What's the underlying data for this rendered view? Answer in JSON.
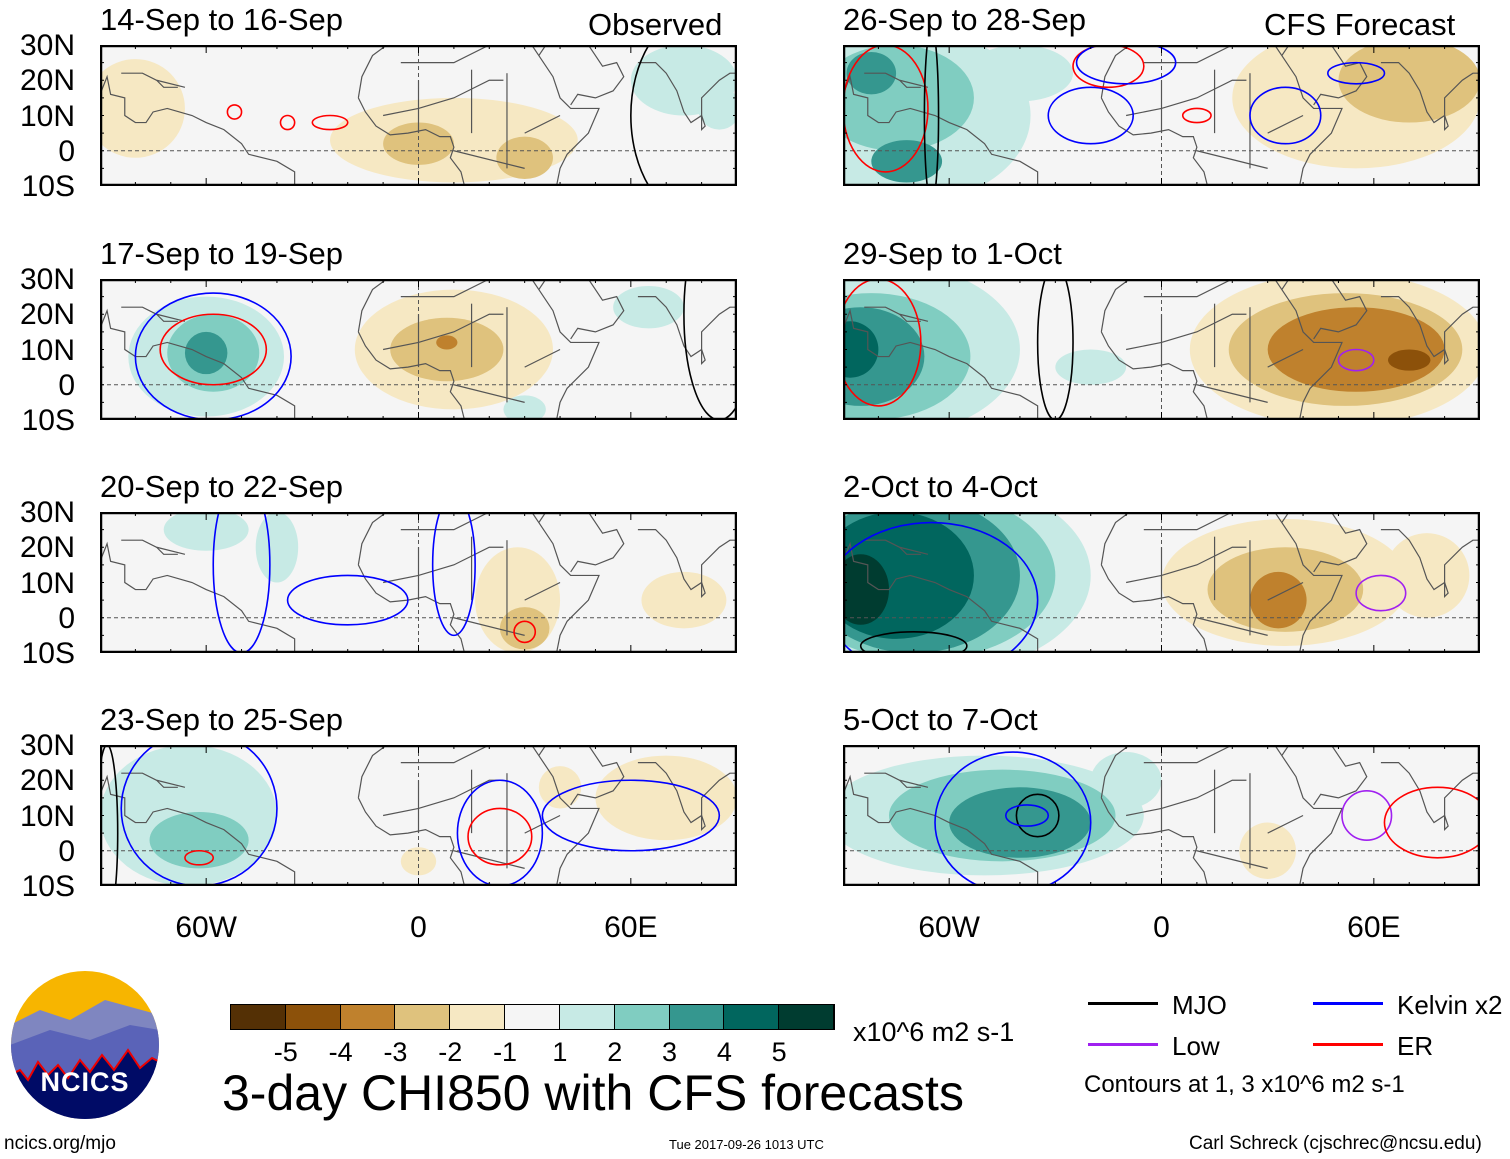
{
  "figure": {
    "title": "3-day CHI850 with CFS forecasts",
    "units": "x10^6 m2 s-1",
    "observed_label": "Observed",
    "forecast_label": "CFS Forecast",
    "logo_text": "NCICS",
    "url": "ncics.org/mjo",
    "timestamp": "Tue 2017-09-26 1013 UTC",
    "author": "Carl Schreck (cjschrec@ncsu.edu)",
    "contour_note": "Contours at 1, 3 x10^6 m2 s-1"
  },
  "legend": [
    {
      "label": "MJO",
      "color": "#000000"
    },
    {
      "label": "Kelvin x2",
      "color": "#0000ff"
    },
    {
      "label": "Low",
      "color": "#a020f0"
    },
    {
      "label": "ER",
      "color": "#ff0000"
    }
  ],
  "colorbar": {
    "colors": [
      "#543005",
      "#8c510a",
      "#bf812d",
      "#dfc27d",
      "#f6e8c3",
      "#f5f5f5",
      "#c7eae5",
      "#80cdc1",
      "#35978f",
      "#01665e",
      "#003c30"
    ],
    "ticks": [
      "-5",
      "-4",
      "-3",
      "-2",
      "-1",
      "1",
      "2",
      "3",
      "4",
      "5"
    ]
  },
  "axes": {
    "lat_labels": [
      "30N",
      "20N",
      "10N",
      "0",
      "10S"
    ],
    "lon_labels": [
      "60W",
      "0",
      "60E"
    ],
    "lon_range": [
      -90,
      90
    ],
    "lat_range": [
      -10,
      30
    ]
  },
  "chart_data": {
    "type": "heatmap",
    "panels": [
      {
        "title": "14-Sep to 16-Sep",
        "kind": "observed",
        "anomalies": [
          [
            -80,
            12,
            14,
            14,
            -1
          ],
          [
            10,
            3,
            35,
            12,
            -1
          ],
          [
            0,
            2,
            10,
            6,
            -2
          ],
          [
            30,
            -2,
            8,
            6,
            -2
          ],
          [
            75,
            20,
            15,
            10,
            1
          ],
          [
            85,
            12,
            6,
            6,
            1
          ]
        ],
        "contours": [
          [
            "er",
            -52,
            11,
            2,
            2
          ],
          [
            "er",
            -25,
            8,
            5,
            2
          ],
          [
            "er",
            -37,
            8,
            2,
            2
          ],
          [
            "mjo",
            80,
            10,
            20,
            30
          ]
        ]
      },
      {
        "title": "17-Sep to 19-Sep",
        "kind": "observed",
        "anomalies": [
          [
            -60,
            8,
            22,
            17,
            1
          ],
          [
            -58,
            9,
            13,
            11,
            2
          ],
          [
            -60,
            9,
            6,
            6,
            3
          ],
          [
            10,
            10,
            28,
            17,
            -1
          ],
          [
            8,
            10,
            16,
            9,
            -2
          ],
          [
            8,
            12,
            3,
            2,
            -3
          ],
          [
            65,
            22,
            10,
            6,
            1
          ],
          [
            30,
            -7,
            6,
            4,
            1
          ]
        ],
        "contours": [
          [
            "kelvin",
            -58,
            8,
            22,
            18
          ],
          [
            "er",
            -58,
            10,
            15,
            10
          ],
          [
            "mjo",
            85,
            20,
            10,
            30
          ]
        ]
      },
      {
        "title": "20-Sep to 22-Sep",
        "kind": "observed",
        "anomalies": [
          [
            -60,
            25,
            12,
            6,
            1
          ],
          [
            -40,
            20,
            6,
            10,
            1
          ],
          [
            28,
            5,
            12,
            15,
            -1
          ],
          [
            30,
            -3,
            7,
            6,
            -2
          ],
          [
            75,
            5,
            12,
            8,
            -1
          ]
        ],
        "contours": [
          [
            "kelvin",
            -20,
            5,
            17,
            7
          ],
          [
            "kelvin",
            -50,
            15,
            8,
            25
          ],
          [
            "er",
            30,
            -4,
            3,
            3
          ],
          [
            "kelvin",
            10,
            15,
            6,
            20
          ]
        ]
      },
      {
        "title": "23-Sep to 25-Sep",
        "kind": "observed",
        "anomalies": [
          [
            -65,
            10,
            25,
            20,
            1
          ],
          [
            -62,
            3,
            14,
            8,
            2
          ],
          [
            70,
            15,
            20,
            12,
            -1
          ],
          [
            40,
            18,
            6,
            6,
            -1
          ],
          [
            0,
            -3,
            5,
            4,
            -1
          ]
        ],
        "contours": [
          [
            "kelvin",
            -62,
            12,
            22,
            22
          ],
          [
            "er",
            -62,
            -2,
            4,
            2
          ],
          [
            "er",
            23,
            4,
            9,
            8
          ],
          [
            "kelvin",
            23,
            5,
            12,
            15
          ],
          [
            "kelvin",
            60,
            10,
            25,
            10
          ],
          [
            "mjo",
            -88,
            5,
            3,
            25
          ]
        ]
      },
      {
        "title": "26-Sep to 28-Sep",
        "kind": "forecast",
        "anomalies": [
          [
            -72,
            10,
            35,
            25,
            1
          ],
          [
            -75,
            15,
            22,
            15,
            2
          ],
          [
            -82,
            22,
            7,
            6,
            3
          ],
          [
            -72,
            -3,
            10,
            6,
            3
          ],
          [
            55,
            15,
            35,
            20,
            -1
          ],
          [
            70,
            20,
            20,
            12,
            -2
          ],
          [
            -40,
            22,
            15,
            8,
            1
          ]
        ],
        "contours": [
          [
            "er",
            -78,
            12,
            12,
            18
          ],
          [
            "kelvin",
            -20,
            10,
            12,
            8
          ],
          [
            "er",
            -15,
            24,
            10,
            6
          ],
          [
            "kelvin",
            -10,
            25,
            14,
            6
          ],
          [
            "er",
            10,
            10,
            4,
            2
          ],
          [
            "kelvin",
            35,
            10,
            10,
            8
          ],
          [
            "kelvin",
            55,
            22,
            8,
            3
          ],
          [
            "mjo",
            -65,
            10,
            2,
            25
          ]
        ]
      },
      {
        "title": "29-Sep to 1-Oct",
        "kind": "forecast",
        "anomalies": [
          [
            -80,
            10,
            40,
            25,
            1
          ],
          [
            -82,
            8,
            28,
            18,
            2
          ],
          [
            -85,
            8,
            18,
            14,
            3
          ],
          [
            -88,
            10,
            8,
            8,
            4
          ],
          [
            50,
            10,
            42,
            22,
            -1
          ],
          [
            52,
            10,
            33,
            16,
            -2
          ],
          [
            55,
            10,
            25,
            12,
            -3
          ],
          [
            70,
            7,
            6,
            3,
            -4
          ],
          [
            -20,
            5,
            10,
            5,
            1
          ]
        ],
        "contours": [
          [
            "er",
            -80,
            12,
            12,
            18
          ],
          [
            "low",
            55,
            7,
            5,
            3
          ],
          [
            "mjo",
            -30,
            12,
            5,
            22
          ]
        ]
      },
      {
        "title": "2-Oct to 4-Oct",
        "kind": "forecast",
        "anomalies": [
          [
            -65,
            12,
            45,
            28,
            1
          ],
          [
            -68,
            12,
            38,
            24,
            2
          ],
          [
            -70,
            12,
            30,
            22,
            3
          ],
          [
            -75,
            12,
            22,
            18,
            4
          ],
          [
            -85,
            8,
            8,
            10,
            5
          ],
          [
            35,
            10,
            35,
            18,
            -1
          ],
          [
            35,
            8,
            22,
            12,
            -2
          ],
          [
            33,
            5,
            8,
            8,
            -3
          ],
          [
            75,
            12,
            12,
            12,
            -1
          ]
        ],
        "contours": [
          [
            "kelvin",
            -65,
            5,
            30,
            22
          ],
          [
            "low",
            62,
            7,
            7,
            5
          ],
          [
            "mjo",
            -70,
            -8,
            15,
            4
          ]
        ]
      },
      {
        "title": "5-Oct to 7-Oct",
        "kind": "forecast",
        "anomalies": [
          [
            -50,
            10,
            45,
            17,
            1
          ],
          [
            -45,
            10,
            32,
            13,
            2
          ],
          [
            -40,
            8,
            20,
            10,
            3
          ],
          [
            -10,
            20,
            10,
            8,
            1
          ],
          [
            30,
            0,
            8,
            8,
            -1
          ]
        ],
        "contours": [
          [
            "kelvin",
            -42,
            8,
            22,
            20
          ],
          [
            "mjo",
            -35,
            10,
            6,
            6
          ],
          [
            "kelvin",
            -38,
            10,
            6,
            3
          ],
          [
            "low",
            58,
            10,
            7,
            7
          ],
          [
            "er",
            78,
            8,
            15,
            10
          ]
        ]
      }
    ]
  }
}
